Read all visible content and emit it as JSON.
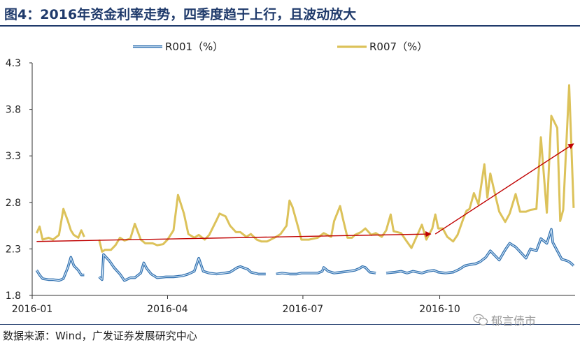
{
  "title": "图4：2016年资金利率走势，四季度趋于上行，且波动放大",
  "source": "数据来源：Wind，广发证券发展研究中心",
  "watermark": "郁言债市",
  "watermark_icon": "wechat-icon",
  "colors": {
    "r001": "#2e6faf",
    "r001_fill": "#cfe2f3",
    "r007": "#dcc25a",
    "arrow": "#c00000",
    "title": "#1f3a6b"
  },
  "chart_data": {
    "type": "line",
    "title": "",
    "xlabel": "",
    "ylabel": "",
    "ylim": [
      1.8,
      4.3
    ],
    "yticks": [
      "1.8",
      "2.3",
      "2.8",
      "3.3",
      "3.8",
      "4.3"
    ],
    "xticks": [
      {
        "label": "2016-01",
        "x": "2016-01-01"
      },
      {
        "label": "2016-04",
        "x": "2016-04-01"
      },
      {
        "label": "2016-07",
        "x": "2016-07-01"
      },
      {
        "label": "2016-10",
        "x": "2016-10-01"
      }
    ],
    "xlim": [
      "2016-01-01",
      "2016-12-31"
    ],
    "grid": false,
    "legend_position": "top",
    "series": [
      {
        "name": "R001（%）",
        "points": [
          [
            "2016-01-04",
            2.07
          ],
          [
            "2016-01-06",
            2.02
          ],
          [
            "2016-01-08",
            1.98
          ],
          [
            "2016-01-12",
            1.97
          ],
          [
            "2016-01-15",
            1.97
          ],
          [
            "2016-01-19",
            1.96
          ],
          [
            "2016-01-22",
            1.98
          ],
          [
            "2016-01-25",
            2.1
          ],
          [
            "2016-01-27",
            2.21
          ],
          [
            "2016-01-29",
            2.12
          ],
          [
            "2016-02-01",
            2.07
          ],
          [
            "2016-02-03",
            2.02
          ],
          [
            "2016-02-05",
            2.02
          ],
          [
            "2016-02-15",
            2.0
          ],
          [
            "2016-02-17",
            1.97
          ],
          [
            "2016-02-18",
            2.24
          ],
          [
            "2016-02-22",
            2.17
          ],
          [
            "2016-02-25",
            2.1
          ],
          [
            "2016-02-29",
            2.03
          ],
          [
            "2016-03-03",
            1.96
          ],
          [
            "2016-03-07",
            1.99
          ],
          [
            "2016-03-10",
            1.99
          ],
          [
            "2016-03-14",
            2.04
          ],
          [
            "2016-03-16",
            2.15
          ],
          [
            "2016-03-18",
            2.09
          ],
          [
            "2016-03-21",
            2.03
          ],
          [
            "2016-03-25",
            1.99
          ],
          [
            "2016-03-31",
            2.0
          ],
          [
            "2016-04-05",
            2.0
          ],
          [
            "2016-04-11",
            2.01
          ],
          [
            "2016-04-15",
            2.03
          ],
          [
            "2016-04-19",
            2.06
          ],
          [
            "2016-04-22",
            2.2
          ],
          [
            "2016-04-25",
            2.06
          ],
          [
            "2016-04-29",
            2.04
          ],
          [
            "2016-05-04",
            2.03
          ],
          [
            "2016-05-09",
            2.04
          ],
          [
            "2016-05-13",
            2.05
          ],
          [
            "2016-05-18",
            2.1
          ],
          [
            "2016-05-20",
            2.11
          ],
          [
            "2016-05-25",
            2.08
          ],
          [
            "2016-05-27",
            2.05
          ],
          [
            "2016-06-01",
            2.03
          ],
          [
            "2016-06-06",
            2.03
          ],
          [
            "2016-06-13",
            2.03
          ],
          [
            "2016-06-17",
            2.04
          ],
          [
            "2016-06-22",
            2.03
          ],
          [
            "2016-06-27",
            2.03
          ],
          [
            "2016-06-30",
            2.04
          ],
          [
            "2016-07-05",
            2.04
          ],
          [
            "2016-07-11",
            2.04
          ],
          [
            "2016-07-14",
            2.06
          ],
          [
            "2016-07-15",
            2.1
          ],
          [
            "2016-07-18",
            2.06
          ],
          [
            "2016-07-22",
            2.04
          ],
          [
            "2016-07-27",
            2.05
          ],
          [
            "2016-08-01",
            2.06
          ],
          [
            "2016-08-05",
            2.07
          ],
          [
            "2016-08-08",
            2.09
          ],
          [
            "2016-08-10",
            2.11
          ],
          [
            "2016-08-12",
            2.1
          ],
          [
            "2016-08-15",
            2.05
          ],
          [
            "2016-08-19",
            2.04
          ],
          [
            "2016-08-26",
            2.04
          ],
          [
            "2016-09-01",
            2.05
          ],
          [
            "2016-09-05",
            2.06
          ],
          [
            "2016-09-09",
            2.04
          ],
          [
            "2016-09-13",
            2.06
          ],
          [
            "2016-09-19",
            2.04
          ],
          [
            "2016-09-23",
            2.06
          ],
          [
            "2016-09-27",
            2.07
          ],
          [
            "2016-09-30",
            2.05
          ],
          [
            "2016-10-05",
            2.04
          ],
          [
            "2016-10-10",
            2.05
          ],
          [
            "2016-10-14",
            2.08
          ],
          [
            "2016-10-18",
            2.12
          ],
          [
            "2016-10-21",
            2.13
          ],
          [
            "2016-10-25",
            2.14
          ],
          [
            "2016-10-28",
            2.16
          ],
          [
            "2016-11-01",
            2.21
          ],
          [
            "2016-11-04",
            2.28
          ],
          [
            "2016-11-07",
            2.23
          ],
          [
            "2016-11-10",
            2.18
          ],
          [
            "2016-11-14",
            2.29
          ],
          [
            "2016-11-17",
            2.36
          ],
          [
            "2016-11-21",
            2.32
          ],
          [
            "2016-11-24",
            2.27
          ],
          [
            "2016-11-28",
            2.2
          ],
          [
            "2016-12-01",
            2.3
          ],
          [
            "2016-12-05",
            2.28
          ],
          [
            "2016-12-08",
            2.41
          ],
          [
            "2016-12-12",
            2.36
          ],
          [
            "2016-12-15",
            2.51
          ],
          [
            "2016-12-16",
            2.37
          ],
          [
            "2016-12-19",
            2.28
          ],
          [
            "2016-12-22",
            2.19
          ],
          [
            "2016-12-26",
            2.17
          ],
          [
            "2016-12-28",
            2.15
          ],
          [
            "2016-12-30",
            2.12
          ]
        ]
      },
      {
        "name": "R007（%）",
        "points": [
          [
            "2016-01-04",
            2.47
          ],
          [
            "2016-01-06",
            2.54
          ],
          [
            "2016-01-08",
            2.4
          ],
          [
            "2016-01-12",
            2.42
          ],
          [
            "2016-01-15",
            2.4
          ],
          [
            "2016-01-19",
            2.45
          ],
          [
            "2016-01-22",
            2.73
          ],
          [
            "2016-01-25",
            2.6
          ],
          [
            "2016-01-27",
            2.5
          ],
          [
            "2016-01-29",
            2.45
          ],
          [
            "2016-02-01",
            2.42
          ],
          [
            "2016-02-03",
            2.5
          ],
          [
            "2016-02-05",
            2.43
          ],
          [
            "2016-02-15",
            2.4
          ],
          [
            "2016-02-17",
            2.27
          ],
          [
            "2016-02-19",
            2.29
          ],
          [
            "2016-02-23",
            2.29
          ],
          [
            "2016-02-26",
            2.34
          ],
          [
            "2016-02-29",
            2.42
          ],
          [
            "2016-03-03",
            2.39
          ],
          [
            "2016-03-07",
            2.41
          ],
          [
            "2016-03-10",
            2.57
          ],
          [
            "2016-03-14",
            2.4
          ],
          [
            "2016-03-17",
            2.36
          ],
          [
            "2016-03-22",
            2.36
          ],
          [
            "2016-03-25",
            2.34
          ],
          [
            "2016-03-29",
            2.35
          ],
          [
            "2016-04-01",
            2.4
          ],
          [
            "2016-04-05",
            2.5
          ],
          [
            "2016-04-08",
            2.88
          ],
          [
            "2016-04-12",
            2.68
          ],
          [
            "2016-04-15",
            2.46
          ],
          [
            "2016-04-19",
            2.42
          ],
          [
            "2016-04-22",
            2.45
          ],
          [
            "2016-04-26",
            2.4
          ],
          [
            "2016-04-29",
            2.45
          ],
          [
            "2016-05-04",
            2.61
          ],
          [
            "2016-05-06",
            2.68
          ],
          [
            "2016-05-10",
            2.65
          ],
          [
            "2016-05-13",
            2.55
          ],
          [
            "2016-05-17",
            2.48
          ],
          [
            "2016-05-20",
            2.48
          ],
          [
            "2016-05-24",
            2.43
          ],
          [
            "2016-05-27",
            2.46
          ],
          [
            "2016-05-31",
            2.4
          ],
          [
            "2016-06-03",
            2.38
          ],
          [
            "2016-06-07",
            2.38
          ],
          [
            "2016-06-13",
            2.43
          ],
          [
            "2016-06-16",
            2.46
          ],
          [
            "2016-06-20",
            2.55
          ],
          [
            "2016-06-22",
            2.82
          ],
          [
            "2016-06-24",
            2.75
          ],
          [
            "2016-06-28",
            2.52
          ],
          [
            "2016-06-30",
            2.4
          ],
          [
            "2016-07-05",
            2.4
          ],
          [
            "2016-07-11",
            2.42
          ],
          [
            "2016-07-15",
            2.47
          ],
          [
            "2016-07-20",
            2.43
          ],
          [
            "2016-07-22",
            2.6
          ],
          [
            "2016-07-26",
            2.76
          ],
          [
            "2016-07-28",
            2.62
          ],
          [
            "2016-07-31",
            2.42
          ],
          [
            "2016-08-03",
            2.42
          ],
          [
            "2016-08-05",
            2.45
          ],
          [
            "2016-08-09",
            2.48
          ],
          [
            "2016-08-12",
            2.52
          ],
          [
            "2016-08-16",
            2.45
          ],
          [
            "2016-08-19",
            2.47
          ],
          [
            "2016-08-23",
            2.43
          ],
          [
            "2016-08-26",
            2.5
          ],
          [
            "2016-08-29",
            2.67
          ],
          [
            "2016-08-31",
            2.49
          ],
          [
            "2016-09-05",
            2.47
          ],
          [
            "2016-09-08",
            2.4
          ],
          [
            "2016-09-12",
            2.31
          ],
          [
            "2016-09-14",
            2.38
          ],
          [
            "2016-09-19",
            2.56
          ],
          [
            "2016-09-22",
            2.4
          ],
          [
            "2016-09-26",
            2.52
          ],
          [
            "2016-09-28",
            2.67
          ],
          [
            "2016-09-30",
            2.52
          ],
          [
            "2016-10-03",
            2.52
          ],
          [
            "2016-10-06",
            2.43
          ],
          [
            "2016-10-10",
            2.38
          ],
          [
            "2016-10-13",
            2.45
          ],
          [
            "2016-10-17",
            2.63
          ],
          [
            "2016-10-19",
            2.71
          ],
          [
            "2016-10-21",
            2.73
          ],
          [
            "2016-10-24",
            2.9
          ],
          [
            "2016-10-27",
            2.78
          ],
          [
            "2016-10-31",
            3.21
          ],
          [
            "2016-11-02",
            2.85
          ],
          [
            "2016-11-04",
            3.11
          ],
          [
            "2016-11-07",
            2.9
          ],
          [
            "2016-11-10",
            2.7
          ],
          [
            "2016-11-14",
            2.59
          ],
          [
            "2016-11-17",
            2.68
          ],
          [
            "2016-11-21",
            2.89
          ],
          [
            "2016-11-24",
            2.7
          ],
          [
            "2016-11-28",
            2.7
          ],
          [
            "2016-12-01",
            2.72
          ],
          [
            "2016-12-05",
            2.73
          ],
          [
            "2016-12-08",
            3.5
          ],
          [
            "2016-12-12",
            2.69
          ],
          [
            "2016-12-15",
            3.73
          ],
          [
            "2016-12-19",
            3.6
          ],
          [
            "2016-12-21",
            2.6
          ],
          [
            "2016-12-23",
            2.72
          ],
          [
            "2016-12-27",
            4.06
          ],
          [
            "2016-12-30",
            2.74
          ]
        ]
      }
    ],
    "annotations": [
      {
        "type": "arrow",
        "from": [
          "2016-01-04",
          2.38
        ],
        "to": [
          "2016-09-25",
          2.46
        ]
      },
      {
        "type": "arrow",
        "from": [
          "2016-09-28",
          2.46
        ],
        "to": [
          "2016-12-30",
          3.43
        ]
      }
    ]
  }
}
